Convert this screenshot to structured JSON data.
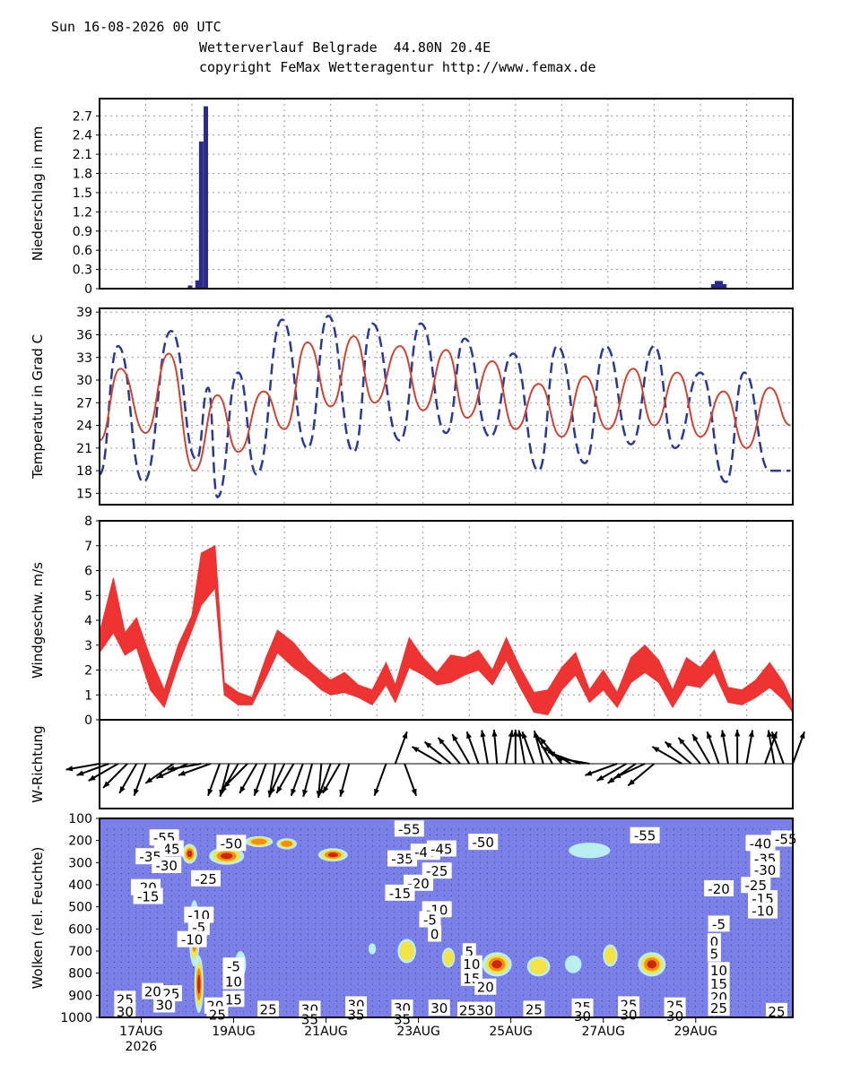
{
  "header": {
    "date_line": "Sun 16-08-2026 00 UTC",
    "title_line": "Wetterverlauf Belgrade  44.80N 20.4E",
    "copyright_line": "copyright FeMax Wetteragentur http://www.femax.de"
  },
  "colors": {
    "precip_bar": "#2a2a8c",
    "temp_max_line": "#2b3990",
    "temp_mean_line": "#cc4433",
    "wind_band": "#ee3333",
    "cloud_bg": "#7b7fe8",
    "cloud_cyan": "#bdf5f0",
    "cloud_yellow": "#f7e23a",
    "cloud_orange": "#f08a12",
    "cloud_red": "#cc2010"
  },
  "x_axis": {
    "ticks": [
      "17AUG",
      "19AUG",
      "21AUG",
      "23AUG",
      "25AUG",
      "27AUG",
      "29AUG"
    ],
    "year_label": "2026"
  },
  "chart_data": [
    {
      "type": "bar",
      "ylabel": "Niederschlag in mm",
      "ylim": [
        0,
        2.97
      ],
      "yticks": [
        "0",
        "0.3",
        "0.6",
        "0.9",
        "1.2",
        "1.5",
        "1.8",
        "2.1",
        "2.4",
        "2.7"
      ],
      "x_days": [
        1.96,
        2.12,
        2.2,
        2.3,
        13.28,
        13.36,
        13.44,
        13.52
      ],
      "values": [
        0.05,
        0.13,
        2.3,
        2.85,
        0.07,
        0.12,
        0.12,
        0.07
      ],
      "grid": true
    },
    {
      "type": "line",
      "ylabel": "Temperatur in Grad C",
      "ylim": [
        13.5,
        39.5
      ],
      "yticks": [
        "15",
        "18",
        "21",
        "24",
        "27",
        "30",
        "33",
        "36",
        "39"
      ],
      "series": [
        {
          "style": "dashed",
          "x_days": [
            0.0,
            0.4,
            0.95,
            1.55,
            2.1,
            2.35,
            2.55,
            3.0,
            3.4,
            3.95,
            4.5,
            4.95,
            5.5,
            5.9,
            6.5,
            6.95,
            7.5,
            7.9,
            8.45,
            8.95,
            9.5,
            9.9,
            10.5,
            10.95,
            11.5,
            12.0,
            12.45,
            13.0,
            13.55,
            13.95,
            14.5,
            14.95
          ],
          "values": [
            17.5,
            34.5,
            16.5,
            36.5,
            19.5,
            29.0,
            14.5,
            31.0,
            17.5,
            38.0,
            21.0,
            38.5,
            20.5,
            37.5,
            22.0,
            37.5,
            23.0,
            35.5,
            22.5,
            33.5,
            18.0,
            34.5,
            19.0,
            34.5,
            21.5,
            34.5,
            21.0,
            31.0,
            16.5,
            31.0,
            18.0,
            18.0
          ]
        },
        {
          "style": "solid",
          "x_days": [
            0.0,
            0.45,
            1.0,
            1.5,
            2.05,
            2.55,
            3.0,
            3.55,
            4.0,
            4.5,
            5.0,
            5.5,
            5.95,
            6.5,
            7.0,
            7.5,
            7.95,
            8.5,
            9.0,
            9.5,
            10.0,
            10.5,
            11.0,
            11.55,
            12.0,
            12.5,
            13.0,
            13.5,
            14.0,
            14.5,
            14.95
          ],
          "values": [
            22.0,
            31.5,
            23.0,
            33.5,
            18.0,
            28.0,
            20.5,
            28.5,
            23.5,
            35.0,
            26.5,
            35.8,
            27.0,
            34.5,
            26.0,
            34.0,
            25.0,
            32.5,
            23.5,
            29.5,
            22.5,
            30.5,
            23.5,
            31.5,
            24.0,
            31.0,
            22.5,
            28.5,
            21.0,
            29.0,
            24.0
          ]
        }
      ],
      "grid": true
    },
    {
      "type": "area",
      "ylabel": "Windgeschw. m/s",
      "ylim": [
        0,
        8
      ],
      "yticks": [
        "0",
        "1",
        "2",
        "3",
        "4",
        "5",
        "6",
        "7",
        "8"
      ],
      "x_days": [
        0.0,
        0.3,
        0.55,
        0.8,
        1.1,
        1.4,
        1.7,
        2.0,
        2.2,
        2.5,
        2.7,
        3.0,
        3.3,
        3.6,
        3.85,
        4.2,
        4.5,
        4.8,
        5.0,
        5.3,
        5.6,
        5.9,
        6.2,
        6.4,
        6.7,
        7.0,
        7.3,
        7.6,
        7.9,
        8.2,
        8.5,
        8.8,
        9.1,
        9.4,
        9.7,
        10.0,
        10.3,
        10.6,
        10.9,
        11.2,
        11.5,
        11.8,
        12.1,
        12.4,
        12.7,
        13.0,
        13.3,
        13.6,
        13.9,
        14.2,
        14.5,
        14.8,
        15.0
      ],
      "upper": [
        3.5,
        5.7,
        3.5,
        4.1,
        2.5,
        1.2,
        3.0,
        4.2,
        6.7,
        7.0,
        1.5,
        1.1,
        0.9,
        2.5,
        3.6,
        3.1,
        2.4,
        1.9,
        1.6,
        1.9,
        1.4,
        1.2,
        2.3,
        1.4,
        3.3,
        2.5,
        1.9,
        2.6,
        2.5,
        2.8,
        2.0,
        3.3,
        2.1,
        1.1,
        1.2,
        2.1,
        2.7,
        1.2,
        2.0,
        1.1,
        2.5,
        3.0,
        2.4,
        1.2,
        2.5,
        2.1,
        2.8,
        1.3,
        1.2,
        1.6,
        2.3,
        1.5,
        0.7
      ],
      "lower": [
        2.7,
        3.5,
        2.6,
        2.9,
        1.2,
        0.5,
        2.2,
        3.6,
        4.6,
        5.3,
        1.0,
        0.6,
        0.6,
        1.7,
        2.7,
        2.1,
        1.7,
        1.2,
        1.0,
        1.1,
        0.9,
        0.6,
        1.4,
        0.7,
        2.1,
        1.8,
        1.4,
        1.5,
        1.8,
        2.0,
        1.4,
        2.4,
        1.3,
        0.3,
        0.2,
        1.2,
        1.8,
        0.7,
        1.2,
        0.5,
        1.5,
        1.9,
        1.5,
        0.5,
        1.4,
        1.3,
        1.9,
        0.7,
        0.6,
        0.9,
        1.3,
        0.8,
        0.3
      ],
      "grid": true
    },
    {
      "type": "scatter",
      "ylabel": "W-Richtung",
      "note_type": "wind direction arrows",
      "x_days": [
        0.0,
        0.2,
        0.4,
        0.6,
        0.8,
        1.0,
        1.6,
        1.9,
        2.2,
        2.4,
        2.6,
        2.8,
        3.0,
        3.2,
        3.4,
        3.6,
        3.8,
        4.0,
        4.2,
        4.4,
        4.6,
        4.8,
        5.0,
        5.2,
        5.4,
        6.2,
        6.4,
        6.6,
        7.4,
        7.6,
        7.8,
        8.0,
        8.2,
        8.4,
        8.6,
        8.8,
        9.0,
        9.2,
        9.4,
        9.6,
        9.8,
        10.0,
        10.2,
        10.4,
        10.6,
        11.2,
        11.4,
        11.6,
        11.8,
        12.0,
        12.6,
        12.8,
        13.0,
        13.2,
        13.4,
        13.6,
        13.8,
        14.0,
        14.4,
        14.6,
        14.8,
        15.0
      ],
      "direction_deg": [
        260,
        250,
        240,
        225,
        210,
        200,
        235,
        245,
        260,
        250,
        200,
        195,
        210,
        225,
        210,
        200,
        190,
        205,
        210,
        200,
        195,
        185,
        200,
        210,
        195,
        200,
        20,
        160,
        300,
        310,
        320,
        330,
        340,
        350,
        355,
        10,
        0,
        350,
        340,
        345,
        330,
        320,
        300,
        290,
        280,
        250,
        240,
        235,
        245,
        230,
        300,
        310,
        320,
        330,
        340,
        350,
        0,
        10,
        20,
        350,
        340,
        20
      ]
    },
    {
      "type": "heatmap",
      "ylabel": "Wolken (rel. Feuchte)",
      "y_pressure_ticks": [
        "100",
        "200",
        "300",
        "400",
        "500",
        "600",
        "700",
        "800",
        "900",
        "1000"
      ],
      "blobs": [
        {
          "x": 1.95,
          "p": 260,
          "rx": 0.16,
          "rp": 45,
          "level": 4
        },
        {
          "x": 2.05,
          "p": 620,
          "rx": 0.12,
          "rp": 150,
          "level": 3
        },
        {
          "x": 2.15,
          "p": 850,
          "rx": 0.1,
          "rp": 130,
          "level": 4
        },
        {
          "x": 2.75,
          "p": 270,
          "rx": 0.38,
          "rp": 40,
          "level": 4
        },
        {
          "x": 3.45,
          "p": 205,
          "rx": 0.3,
          "rp": 25,
          "level": 3
        },
        {
          "x": 4.05,
          "p": 215,
          "rx": 0.22,
          "rp": 25,
          "level": 3
        },
        {
          "x": 5.05,
          "p": 265,
          "rx": 0.32,
          "rp": 30,
          "level": 4
        },
        {
          "x": 3.05,
          "p": 760,
          "rx": 0.12,
          "rp": 60,
          "level": 1
        },
        {
          "x": 6.65,
          "p": 700,
          "rx": 0.2,
          "rp": 55,
          "level": 2
        },
        {
          "x": 7.55,
          "p": 730,
          "rx": 0.14,
          "rp": 45,
          "level": 2
        },
        {
          "x": 8.6,
          "p": 760,
          "rx": 0.32,
          "rp": 55,
          "level": 4
        },
        {
          "x": 9.5,
          "p": 770,
          "rx": 0.25,
          "rp": 45,
          "level": 2
        },
        {
          "x": 10.25,
          "p": 760,
          "rx": 0.18,
          "rp": 40,
          "level": 1
        },
        {
          "x": 11.05,
          "p": 720,
          "rx": 0.16,
          "rp": 50,
          "level": 2
        },
        {
          "x": 11.95,
          "p": 760,
          "rx": 0.3,
          "rp": 55,
          "level": 4
        },
        {
          "x": 10.6,
          "p": 245,
          "rx": 0.45,
          "rp": 35,
          "level": 1
        },
        {
          "x": 5.9,
          "p": 690,
          "rx": 0.08,
          "rp": 25,
          "level": 1
        }
      ],
      "labels": [
        {
          "x": 0.55,
          "p": 920,
          "t": "25"
        },
        {
          "x": 0.55,
          "p": 975,
          "t": "30"
        },
        {
          "x": 1.15,
          "p": 885,
          "t": "20"
        },
        {
          "x": 1.55,
          "p": 895,
          "t": "25"
        },
        {
          "x": 1.4,
          "p": 945,
          "t": "30"
        },
        {
          "x": 2.5,
          "p": 950,
          "t": "20"
        },
        {
          "x": 2.55,
          "p": 990,
          "t": "25"
        },
        {
          "x": 2.9,
          "p": 920,
          "t": "15"
        },
        {
          "x": 2.9,
          "p": 840,
          "t": "10"
        },
        {
          "x": 2.9,
          "p": 770,
          "t": "-5"
        },
        {
          "x": 3.65,
          "p": 965,
          "t": "25"
        },
        {
          "x": 4.55,
          "p": 965,
          "t": "30"
        },
        {
          "x": 4.55,
          "p": 1010,
          "t": "35"
        },
        {
          "x": 5.55,
          "p": 945,
          "t": "30"
        },
        {
          "x": 5.55,
          "p": 990,
          "t": "35"
        },
        {
          "x": 6.55,
          "p": 960,
          "t": "30"
        },
        {
          "x": 6.55,
          "p": 1010,
          "t": "35"
        },
        {
          "x": 7.35,
          "p": 960,
          "t": "30"
        },
        {
          "x": 8.15,
          "p": 970,
          "t": "2530"
        },
        {
          "x": 9.4,
          "p": 965,
          "t": "25"
        },
        {
          "x": 10.45,
          "p": 955,
          "t": "25"
        },
        {
          "x": 10.45,
          "p": 995,
          "t": "30"
        },
        {
          "x": 11.45,
          "p": 945,
          "t": "25"
        },
        {
          "x": 11.45,
          "p": 990,
          "t": "30"
        },
        {
          "x": 12.45,
          "p": 950,
          "t": "25"
        },
        {
          "x": 12.45,
          "p": 995,
          "t": "30"
        },
        {
          "x": 14.65,
          "p": 975,
          "t": "25"
        },
        {
          "x": 1.4,
          "p": 190,
          "t": "-55"
        },
        {
          "x": 1.5,
          "p": 240,
          "t": "-45"
        },
        {
          "x": 1.1,
          "p": 275,
          "t": "-35"
        },
        {
          "x": 1.45,
          "p": 315,
          "t": "-30"
        },
        {
          "x": 2.3,
          "p": 375,
          "t": "-25"
        },
        {
          "x": 1.0,
          "p": 415,
          "t": "-20"
        },
        {
          "x": 1.05,
          "p": 455,
          "t": "-15"
        },
        {
          "x": 2.15,
          "p": 540,
          "t": "-10"
        },
        {
          "x": 2.15,
          "p": 595,
          "t": "-5"
        },
        {
          "x": 2.0,
          "p": 650,
          "t": "-10"
        },
        {
          "x": 2.85,
          "p": 215,
          "t": "-50"
        },
        {
          "x": 6.7,
          "p": 150,
          "t": "-55"
        },
        {
          "x": 6.55,
          "p": 285,
          "t": "-35"
        },
        {
          "x": 7.05,
          "p": 255,
          "t": "-40"
        },
        {
          "x": 7.4,
          "p": 240,
          "t": "-45"
        },
        {
          "x": 7.3,
          "p": 340,
          "t": "-25"
        },
        {
          "x": 6.9,
          "p": 395,
          "t": "-20"
        },
        {
          "x": 6.5,
          "p": 440,
          "t": "-15"
        },
        {
          "x": 7.3,
          "p": 515,
          "t": "-10"
        },
        {
          "x": 7.15,
          "p": 560,
          "t": "-5"
        },
        {
          "x": 7.25,
          "p": 625,
          "t": "0"
        },
        {
          "x": 8.3,
          "p": 210,
          "t": "-50"
        },
        {
          "x": 8.0,
          "p": 705,
          "t": "5"
        },
        {
          "x": 8.05,
          "p": 760,
          "t": "10"
        },
        {
          "x": 8.05,
          "p": 825,
          "t": "15"
        },
        {
          "x": 8.35,
          "p": 865,
          "t": "20"
        },
        {
          "x": 11.8,
          "p": 180,
          "t": "-55"
        },
        {
          "x": 14.3,
          "p": 215,
          "t": "-40"
        },
        {
          "x": 14.4,
          "p": 285,
          "t": "-35"
        },
        {
          "x": 14.4,
          "p": 335,
          "t": "-30"
        },
        {
          "x": 14.2,
          "p": 405,
          "t": "-25"
        },
        {
          "x": 13.4,
          "p": 420,
          "t": "-20"
        },
        {
          "x": 14.35,
          "p": 465,
          "t": "-15"
        },
        {
          "x": 14.35,
          "p": 520,
          "t": "-10"
        },
        {
          "x": 13.4,
          "p": 580,
          "t": "-5"
        },
        {
          "x": 13.3,
          "p": 660,
          "t": "0"
        },
        {
          "x": 13.3,
          "p": 715,
          "t": "5"
        },
        {
          "x": 13.4,
          "p": 790,
          "t": "10"
        },
        {
          "x": 13.4,
          "p": 850,
          "t": "15"
        },
        {
          "x": 13.4,
          "p": 910,
          "t": "20"
        },
        {
          "x": 13.4,
          "p": 960,
          "t": "25"
        },
        {
          "x": 14.85,
          "p": 195,
          "t": "-55"
        }
      ]
    }
  ]
}
